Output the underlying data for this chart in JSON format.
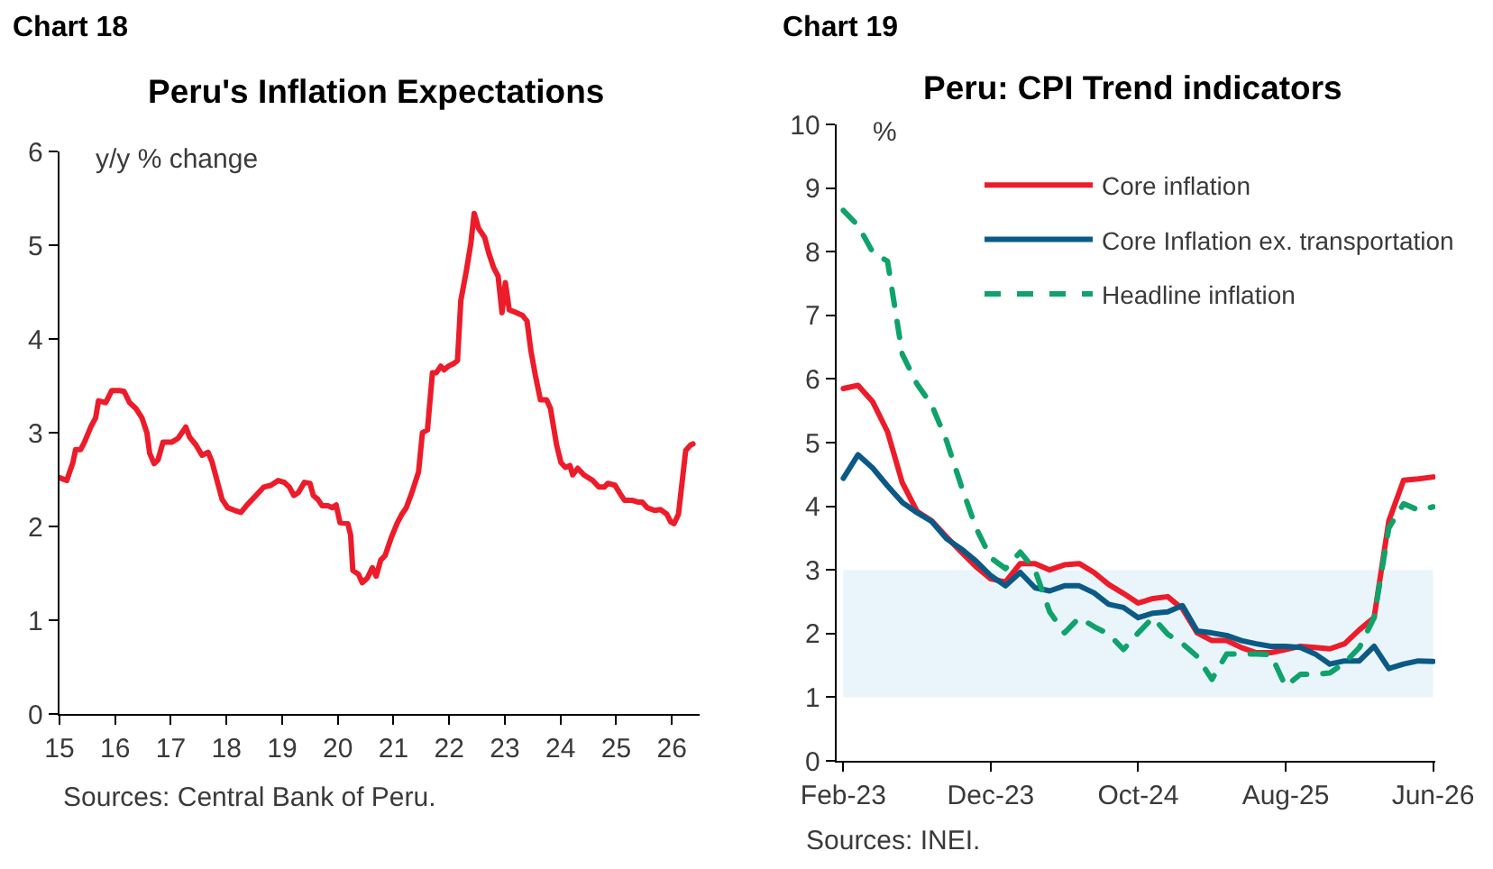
{
  "chart_data": [
    {
      "type": "line",
      "title": "Peru's Inflation Expectations",
      "ylabel": "y/y % change",
      "annotations": [
        "Chart 18",
        "Sources: Central Bank of Peru."
      ],
      "x": [
        15.0,
        15.13,
        15.24,
        15.29,
        15.38,
        15.45,
        15.56,
        15.65,
        15.7,
        15.83,
        15.94,
        16.08,
        16.16,
        16.26,
        16.37,
        16.48,
        16.57,
        16.62,
        16.7,
        16.77,
        16.86,
        17.02,
        17.13,
        17.27,
        17.34,
        17.45,
        17.56,
        17.67,
        17.74,
        17.83,
        17.92,
        18.02,
        18.15,
        18.26,
        18.37,
        18.53,
        18.67,
        18.8,
        18.93,
        19.04,
        19.13,
        19.21,
        19.29,
        19.4,
        19.5,
        19.56,
        19.64,
        19.72,
        19.83,
        19.9,
        19.97,
        20.04,
        20.18,
        20.23,
        20.27,
        20.37,
        20.44,
        20.53,
        20.62,
        20.69,
        20.77,
        20.85,
        20.96,
        21.07,
        21.15,
        21.23,
        21.33,
        21.45,
        21.52,
        21.61,
        21.7,
        21.77,
        21.85,
        21.91,
        21.99,
        22.09,
        22.15,
        22.21,
        22.31,
        22.39,
        22.45,
        22.53,
        22.64,
        22.71,
        22.8,
        22.88,
        22.95,
        23.01,
        23.08,
        23.17,
        23.32,
        23.4,
        23.47,
        23.55,
        23.64,
        23.75,
        23.82,
        23.93,
        24.01,
        24.09,
        24.17,
        24.22,
        24.31,
        24.42,
        24.58,
        24.69,
        24.79,
        24.85,
        24.98,
        25.06,
        25.15,
        25.28,
        25.39,
        25.47,
        25.56,
        25.69,
        25.8,
        25.91,
        25.98,
        26.04,
        26.12,
        26.2,
        26.25,
        26.34,
        26.38
      ],
      "series": [
        {
          "color": "#ec1c2a",
          "values": [
            2.52,
            2.49,
            2.68,
            2.82,
            2.82,
            2.9,
            3.06,
            3.16,
            3.34,
            3.32,
            3.45,
            3.45,
            3.44,
            3.32,
            3.26,
            3.16,
            3.0,
            2.78,
            2.67,
            2.71,
            2.9,
            2.9,
            2.94,
            3.06,
            2.95,
            2.87,
            2.76,
            2.79,
            2.69,
            2.49,
            2.29,
            2.2,
            2.17,
            2.15,
            2.23,
            2.33,
            2.42,
            2.44,
            2.49,
            2.47,
            2.42,
            2.33,
            2.36,
            2.47,
            2.46,
            2.33,
            2.29,
            2.22,
            2.22,
            2.2,
            2.23,
            2.04,
            2.03,
            1.91,
            1.53,
            1.49,
            1.4,
            1.45,
            1.56,
            1.47,
            1.64,
            1.69,
            1.88,
            2.04,
            2.13,
            2.2,
            2.36,
            2.58,
            3.0,
            3.03,
            3.64,
            3.64,
            3.71,
            3.67,
            3.71,
            3.74,
            3.77,
            4.41,
            4.73,
            5.02,
            5.34,
            5.18,
            5.08,
            4.92,
            4.76,
            4.67,
            4.28,
            4.6,
            4.31,
            4.29,
            4.25,
            4.19,
            3.87,
            3.61,
            3.35,
            3.35,
            3.26,
            2.87,
            2.68,
            2.63,
            2.65,
            2.55,
            2.62,
            2.55,
            2.49,
            2.42,
            2.42,
            2.46,
            2.44,
            2.36,
            2.28,
            2.28,
            2.26,
            2.26,
            2.2,
            2.17,
            2.18,
            2.13,
            2.05,
            2.03,
            2.13,
            2.55,
            2.81,
            2.87,
            2.88
          ]
        }
      ],
      "xlim": [
        15,
        26.5
      ],
      "xticks": [
        15,
        16,
        17,
        18,
        19,
        20,
        21,
        22,
        23,
        24,
        25,
        26
      ],
      "ylim": [
        0,
        6
      ],
      "yticks": [
        0,
        1,
        2,
        3,
        4,
        5,
        6
      ],
      "grid": false,
      "legend": false
    },
    {
      "type": "line",
      "title": "Peru: CPI Trend indicators",
      "ylabel": "%",
      "annotations": [
        "Chart 19",
        "Sources: INEI."
      ],
      "categories": [
        "Feb-23",
        null,
        null,
        null,
        null,
        null,
        null,
        null,
        null,
        null,
        "Dec-23",
        null,
        null,
        null,
        null,
        null,
        null,
        null,
        null,
        null,
        "Oct-24",
        null,
        null,
        null,
        null,
        null,
        null,
        null,
        null,
        null,
        "Aug-25",
        null,
        null,
        null,
        null,
        null,
        null,
        null,
        null,
        null,
        "Jun-26"
      ],
      "series": [
        {
          "name": "Core inflation",
          "color": "#ec1c2a",
          "values": [
            5.85,
            5.9,
            5.64,
            5.17,
            4.37,
            3.92,
            3.77,
            3.52,
            3.28,
            3.05,
            2.86,
            2.81,
            3.1,
            3.1,
            3.0,
            3.08,
            3.1,
            2.96,
            2.77,
            2.63,
            2.48,
            2.55,
            2.58,
            2.39,
            2.01,
            1.89,
            1.89,
            1.78,
            1.7,
            1.7,
            1.75,
            1.8,
            1.78,
            1.76,
            1.84,
            2.06,
            2.25,
            3.77,
            4.41,
            4.43,
            4.46
          ]
        },
        {
          "name": "Core Inflation ex. transportation",
          "color": "#0b5a86",
          "values": [
            4.44,
            4.81,
            4.6,
            4.32,
            4.06,
            3.9,
            3.76,
            3.49,
            3.33,
            3.14,
            2.91,
            2.75,
            2.96,
            2.72,
            2.67,
            2.75,
            2.75,
            2.64,
            2.46,
            2.41,
            2.25,
            2.32,
            2.34,
            2.44,
            2.04,
            2.01,
            1.97,
            1.89,
            1.84,
            1.8,
            1.8,
            1.78,
            1.68,
            1.52,
            1.57,
            1.57,
            1.8,
            1.45,
            1.52,
            1.57,
            1.56
          ]
        },
        {
          "name": "Headline inflation",
          "color": "#0fa36b",
          "line_style": "dashed",
          "values": [
            8.65,
            8.41,
            7.99,
            7.85,
            6.39,
            5.92,
            5.59,
            5.03,
            4.32,
            3.66,
            3.19,
            3.02,
            3.28,
            3.0,
            2.34,
            2.01,
            2.25,
            2.11,
            1.99,
            1.75,
            2.01,
            2.25,
            1.99,
            1.84,
            1.64,
            1.28,
            1.68,
            1.68,
            1.68,
            1.67,
            1.17,
            1.36,
            1.36,
            1.38,
            1.54,
            1.78,
            2.25,
            3.66,
            4.04,
            3.94,
            3.99
          ]
        }
      ],
      "ylim": [
        0,
        10
      ],
      "yticks": [
        0,
        1,
        2,
        3,
        4,
        5,
        6,
        7,
        8,
        9,
        10
      ],
      "bands": [
        {
          "axis": "y",
          "from": 1,
          "to": 3,
          "color": "#eaf5fb"
        }
      ],
      "grid": false,
      "legend": "top right"
    }
  ]
}
